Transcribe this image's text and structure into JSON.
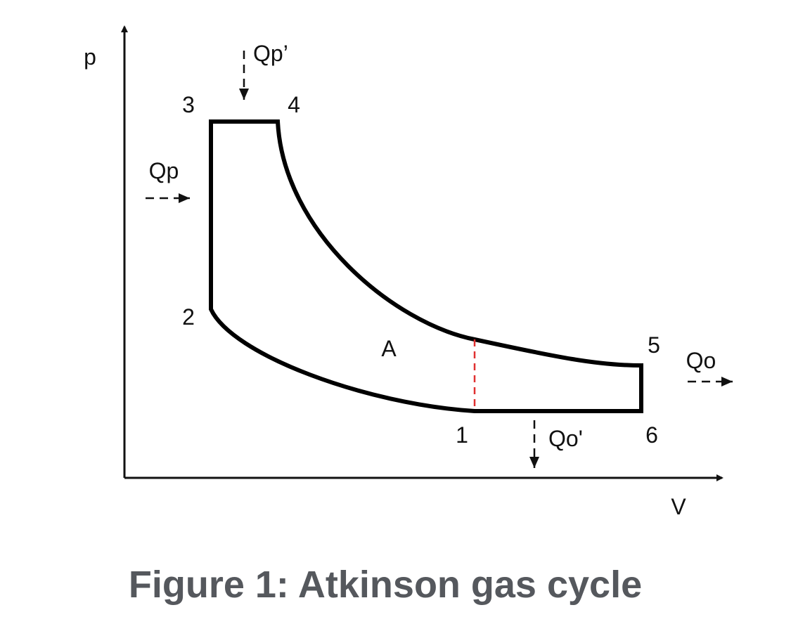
{
  "diagram": {
    "axes": {
      "y_label": "p",
      "x_label": "V"
    },
    "points": [
      "1",
      "2",
      "3",
      "4",
      "5",
      "6"
    ],
    "heat": {
      "qp_prime": "Qp’",
      "qp": "Qp",
      "qo": "Qo",
      "qo_prime": "Qo'"
    },
    "area_label": "A"
  },
  "caption": "Figure 1: Atkinson gas cycle"
}
